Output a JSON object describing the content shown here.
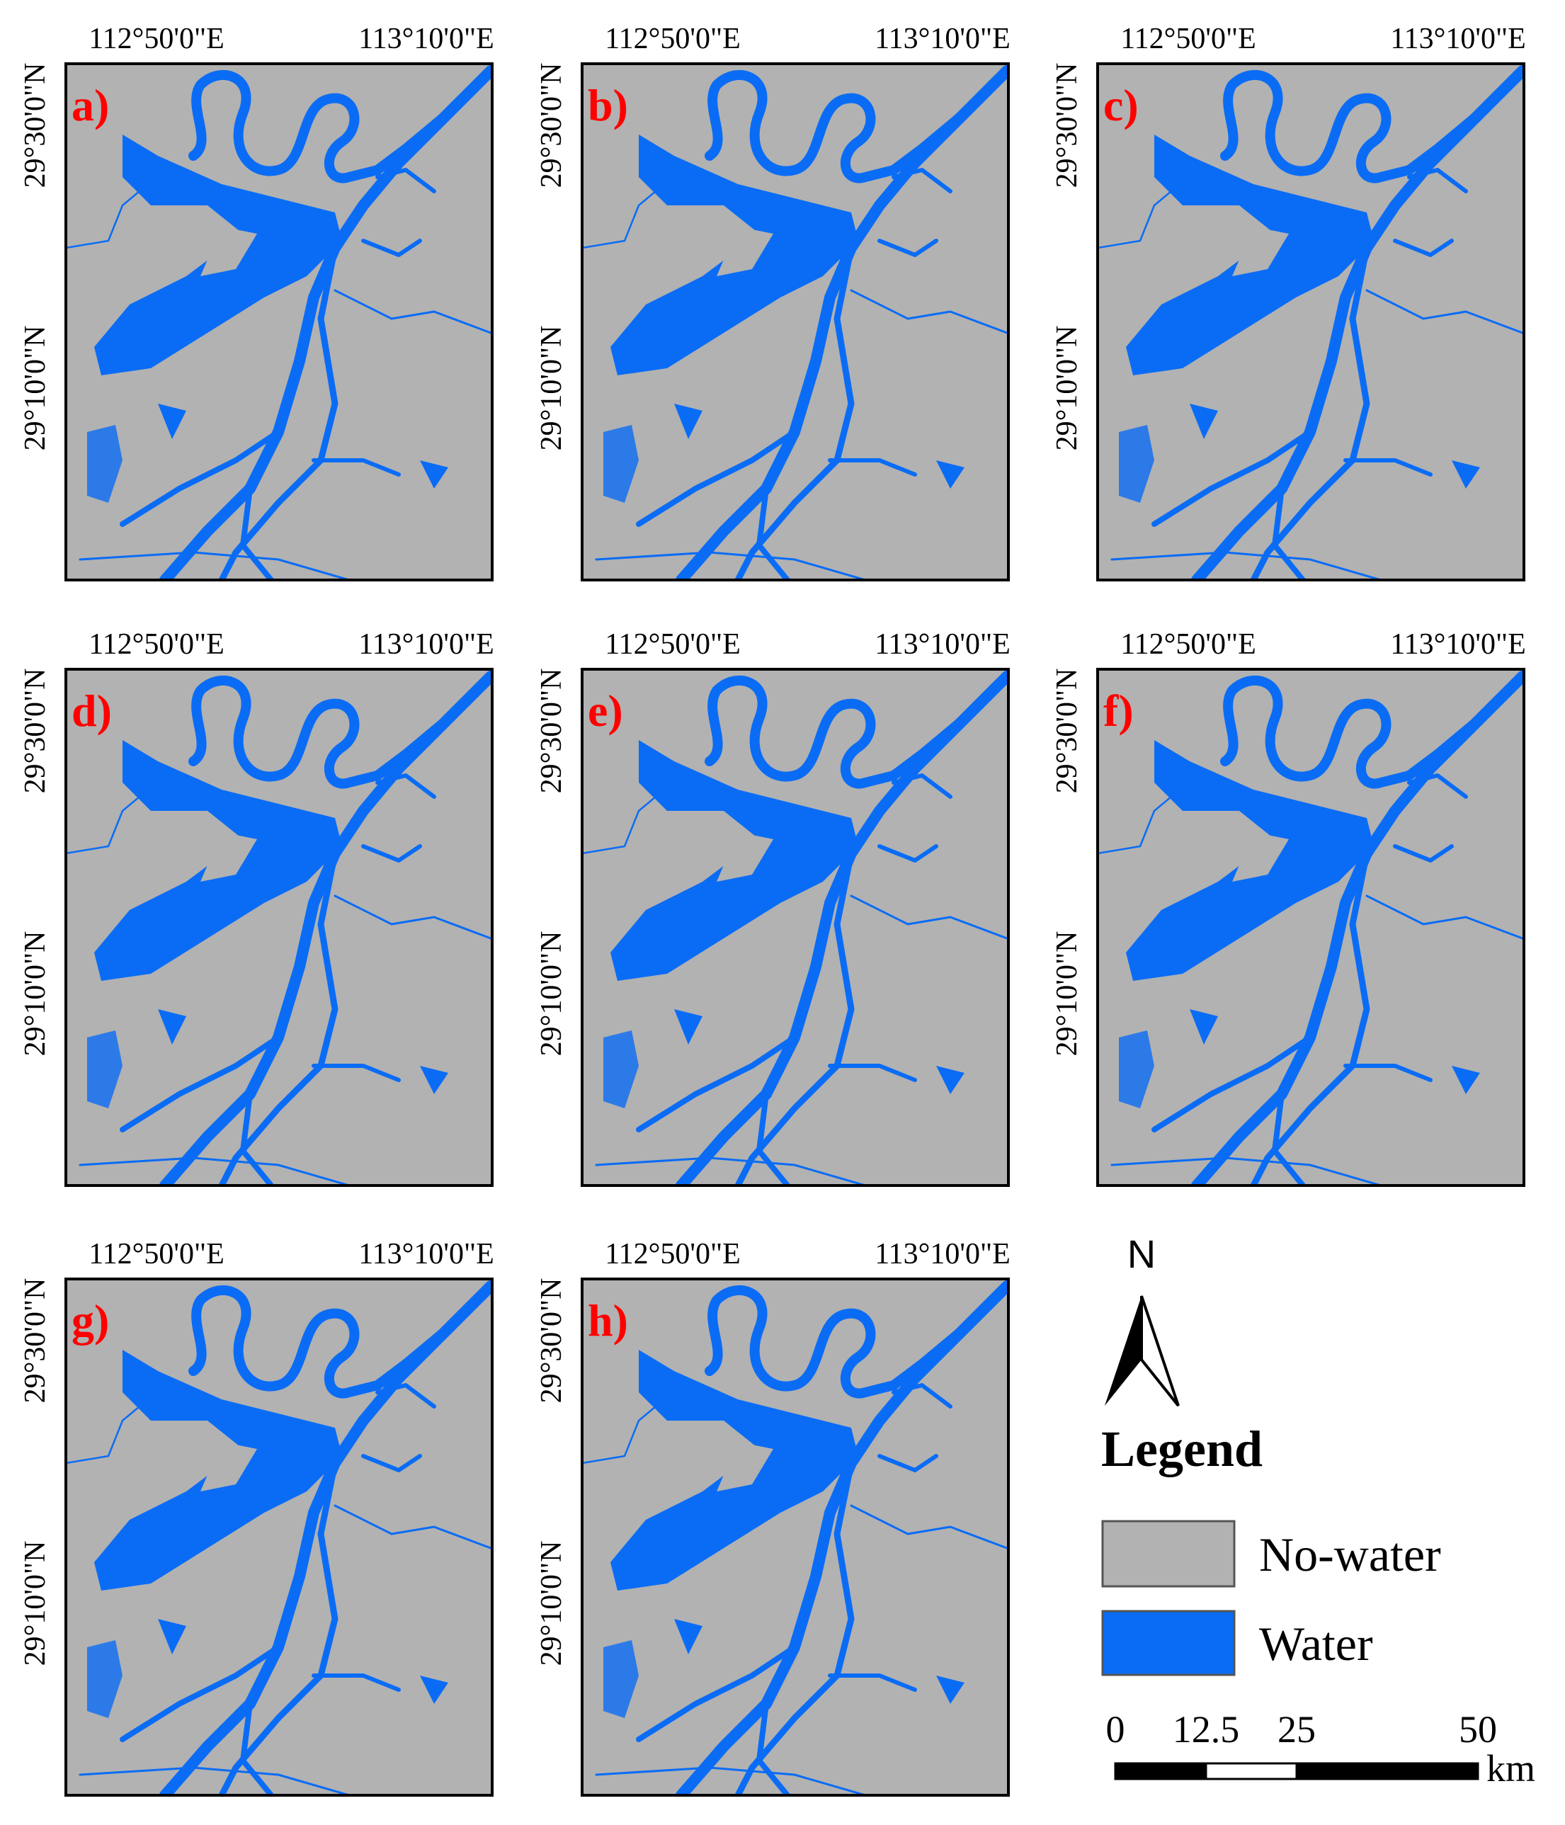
{
  "panels": [
    {
      "label": "a)",
      "lon_labels": [
        "112°50'0\"E",
        "113°10'0\"E"
      ],
      "lat_labels": [
        "29°30'0\"N",
        "29°10'0\"N"
      ]
    },
    {
      "label": "b)",
      "lon_labels": [
        "112°50'0\"E",
        "113°10'0\"E"
      ],
      "lat_labels": [
        "29°30'0\"N",
        "29°10'0\"N"
      ]
    },
    {
      "label": "c)",
      "lon_labels": [
        "112°50'0\"E",
        "113°10'0\"E"
      ],
      "lat_labels": [
        "29°30'0\"N",
        "29°10'0\"N"
      ]
    },
    {
      "label": "d)",
      "lon_labels": [
        "112°50'0\"E",
        "113°10'0\"E"
      ],
      "lat_labels": [
        "29°30'0\"N",
        "29°10'0\"N"
      ]
    },
    {
      "label": "e)",
      "lon_labels": [
        "112°50'0\"E",
        "113°10'0\"E"
      ],
      "lat_labels": [
        "29°30'0\"N",
        "29°10'0\"N"
      ]
    },
    {
      "label": "f)",
      "lon_labels": [
        "112°50'0\"E",
        "113°10'0\"E"
      ],
      "lat_labels": [
        "29°30'0\"N",
        "29°10'0\"N"
      ]
    },
    {
      "label": "g)",
      "lon_labels": [
        "112°50'0\"E",
        "113°10'0\"E"
      ],
      "lat_labels": [
        "29°30'0\"N",
        "29°10'0\"N"
      ]
    },
    {
      "label": "h)",
      "lon_labels": [
        "112°50'0\"E",
        "113°10'0\"E"
      ],
      "lat_labels": [
        "29°30'0\"N",
        "29°10'0\"N"
      ]
    }
  ],
  "legend": {
    "north": "N",
    "title": "Legend",
    "items": [
      "No-water",
      "Water"
    ],
    "scale_bar": {
      "ticks": [
        0,
        12.5,
        25,
        50
      ],
      "unit": "km"
    }
  }
}
